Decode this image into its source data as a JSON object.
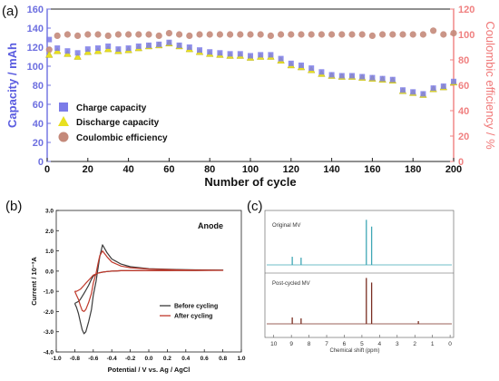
{
  "chart_data": [
    {
      "panel": "(a)",
      "type": "scatter",
      "xlabel": "Number of cycle",
      "ylabel_left": "Capacity / mAh",
      "ylabel_right": "Coulombic efficiency / %",
      "xlim": [
        0,
        200
      ],
      "ylim_left": [
        0,
        160
      ],
      "ylim_right": [
        0,
        120
      ],
      "x_ticks": [
        "0",
        "20",
        "40",
        "60",
        "80",
        "100",
        "120",
        "140",
        "160",
        "180",
        "200"
      ],
      "y_left_ticks": [
        "0",
        "20",
        "40",
        "60",
        "80",
        "100",
        "120",
        "140",
        "160"
      ],
      "y_right_ticks": [
        "0",
        "20",
        "40",
        "60",
        "80",
        "100",
        "120"
      ],
      "legend": [
        "Charge capacity",
        "Discharge capacity",
        "Coulombic efficiency"
      ],
      "legend_position": "lower-left",
      "colors": {
        "charge": "#7b7be8",
        "discharge": "#e8e020",
        "ce": "#c4897a",
        "left_axis": "#6d6fe0",
        "right_axis": "#f08080"
      },
      "series": [
        {
          "name": "Charge capacity",
          "axis": "left",
          "x": [
            1,
            5,
            10,
            15,
            20,
            25,
            30,
            35,
            40,
            45,
            50,
            55,
            60,
            65,
            70,
            75,
            80,
            85,
            90,
            95,
            100,
            105,
            110,
            115,
            120,
            125,
            130,
            135,
            140,
            145,
            150,
            155,
            160,
            165,
            170,
            175,
            180,
            185,
            190,
            195,
            200
          ],
          "values": [
            128,
            119,
            116,
            114,
            118,
            119,
            121,
            118,
            119,
            121,
            122,
            123,
            125,
            122,
            120,
            117,
            115,
            114,
            113,
            113,
            111,
            112,
            112,
            108,
            103,
            101,
            98,
            94,
            91,
            90,
            90,
            89,
            88,
            87,
            86,
            75,
            73,
            71,
            77,
            79,
            84
          ]
        },
        {
          "name": "Discharge capacity",
          "axis": "left",
          "x": [
            1,
            5,
            10,
            15,
            20,
            25,
            30,
            35,
            40,
            45,
            50,
            55,
            60,
            65,
            70,
            75,
            80,
            85,
            90,
            95,
            100,
            105,
            110,
            115,
            120,
            125,
            130,
            135,
            140,
            145,
            150,
            155,
            160,
            165,
            170,
            175,
            180,
            185,
            190,
            195,
            200
          ],
          "values": [
            112,
            116,
            113,
            110,
            115,
            116,
            118,
            116,
            117,
            119,
            121,
            122,
            124,
            121,
            118,
            115,
            113,
            112,
            111,
            111,
            109,
            110,
            110,
            106,
            101,
            99,
            96,
            92,
            90,
            89,
            89,
            88,
            87,
            86,
            85,
            74,
            72,
            70,
            76,
            78,
            83
          ]
        },
        {
          "name": "Coulombic efficiency",
          "axis": "right",
          "x": [
            1,
            5,
            10,
            15,
            20,
            25,
            30,
            35,
            40,
            45,
            50,
            55,
            60,
            65,
            70,
            75,
            80,
            85,
            90,
            95,
            100,
            105,
            110,
            115,
            120,
            125,
            130,
            135,
            140,
            145,
            150,
            155,
            160,
            165,
            170,
            175,
            180,
            185,
            190,
            195,
            200
          ],
          "values": [
            88,
            99,
            100,
            99,
            100,
            100,
            99,
            100,
            100,
            100,
            100,
            99,
            101,
            100,
            99,
            100,
            100,
            100,
            100,
            100,
            100,
            100,
            99,
            100,
            100,
            100,
            100,
            100,
            100,
            100,
            100,
            100,
            99,
            100,
            100,
            100,
            100,
            100,
            103,
            100,
            101
          ]
        }
      ]
    },
    {
      "panel": "(b)",
      "type": "line",
      "xlabel": "Potential / V vs. Ag / AgCl",
      "ylabel": "Current / 10⁻³A",
      "xlim": [
        -1.0,
        1.0
      ],
      "ylim": [
        -4.0,
        3.0
      ],
      "x_ticks": [
        "-1.0",
        "-0.8",
        "-0.6",
        "-0.4",
        "-0.2",
        "0.0",
        "0.2",
        "0.4",
        "0.6",
        "0.8",
        "1.0"
      ],
      "y_ticks": [
        "-4.0",
        "-3.0",
        "-2.0",
        "-1.0",
        "0.0",
        "1.0",
        "2.0",
        "3.0"
      ],
      "annotation": "Anode",
      "legend": [
        "Before cycling",
        "After cycling"
      ],
      "legend_position": "lower-right",
      "colors": {
        "before": "#3a3a3a",
        "after": "#c0392b"
      },
      "series": [
        {
          "name": "Before cycling",
          "x": [
            -0.8,
            -0.78,
            -0.76,
            -0.74,
            -0.72,
            -0.7,
            -0.68,
            -0.65,
            -0.62,
            -0.6,
            -0.57,
            -0.55,
            -0.53,
            -0.5,
            -0.45,
            -0.4,
            -0.3,
            -0.2,
            0.0,
            0.3,
            0.5,
            0.8,
            0.5,
            0.3,
            0.0,
            -0.2,
            -0.3,
            -0.4,
            -0.45,
            -0.5,
            -0.55,
            -0.6,
            -0.62,
            -0.65,
            -0.68,
            -0.7,
            -0.72,
            -0.74,
            -0.76,
            -0.78,
            -0.8
          ],
          "values": [
            -1.6,
            -1.8,
            -2.1,
            -2.5,
            -2.9,
            -3.1,
            -3.0,
            -2.5,
            -1.9,
            -1.2,
            -0.5,
            0.1,
            0.7,
            1.3,
            0.9,
            0.6,
            0.35,
            0.22,
            0.12,
            0.08,
            0.06,
            0.05,
            0.03,
            0.03,
            0.02,
            0.02,
            0.02,
            0.0,
            -0.02,
            -0.05,
            -0.1,
            -0.25,
            -0.4,
            -0.7,
            -0.95,
            -1.1,
            -1.25,
            -1.4,
            -1.5,
            -1.55,
            -1.6
          ]
        },
        {
          "name": "After cycling",
          "x": [
            -0.8,
            -0.78,
            -0.76,
            -0.74,
            -0.72,
            -0.7,
            -0.68,
            -0.65,
            -0.62,
            -0.6,
            -0.57,
            -0.55,
            -0.53,
            -0.5,
            -0.45,
            -0.4,
            -0.3,
            -0.2,
            0.0,
            0.3,
            0.5,
            0.8,
            0.5,
            0.3,
            0.0,
            -0.2,
            -0.3,
            -0.4,
            -0.45,
            -0.5,
            -0.55,
            -0.6,
            -0.62,
            -0.65,
            -0.68,
            -0.7,
            -0.72,
            -0.74,
            -0.76,
            -0.78,
            -0.8
          ],
          "values": [
            -1.0,
            -1.2,
            -1.4,
            -1.7,
            -1.95,
            -2.0,
            -1.9,
            -1.55,
            -1.1,
            -0.6,
            -0.1,
            0.35,
            0.75,
            1.0,
            0.7,
            0.45,
            0.25,
            0.17,
            0.1,
            0.06,
            0.05,
            0.04,
            0.03,
            0.03,
            0.02,
            0.02,
            0.02,
            0.0,
            -0.02,
            -0.05,
            -0.1,
            -0.2,
            -0.3,
            -0.45,
            -0.6,
            -0.7,
            -0.8,
            -0.9,
            -0.95,
            -1.0,
            -1.0
          ]
        }
      ]
    },
    {
      "panel": "(c)",
      "type": "line",
      "xlabel": "Chemical shift (ppm)",
      "x_ticks": [
        "10",
        "9",
        "8",
        "7",
        "6",
        "5",
        "4",
        "3",
        "2",
        "1",
        "0"
      ],
      "xlim": [
        10.5,
        -0.2
      ],
      "spectra": [
        {
          "name": "Original MV",
          "color": "#3fa7b5",
          "peaks": [
            {
              "ppm": 8.95,
              "height": 0.18
            },
            {
              "ppm": 8.45,
              "height": 0.16
            },
            {
              "ppm": 4.75,
              "height": 1.0
            },
            {
              "ppm": 4.45,
              "height": 0.85
            }
          ]
        },
        {
          "name": "Post-cycled MV",
          "color": "#7a2e22",
          "peaks": [
            {
              "ppm": 8.95,
              "height": 0.14
            },
            {
              "ppm": 8.45,
              "height": 0.12
            },
            {
              "ppm": 4.75,
              "height": 1.0
            },
            {
              "ppm": 4.45,
              "height": 0.9
            },
            {
              "ppm": 1.8,
              "height": 0.06
            }
          ]
        }
      ]
    }
  ]
}
